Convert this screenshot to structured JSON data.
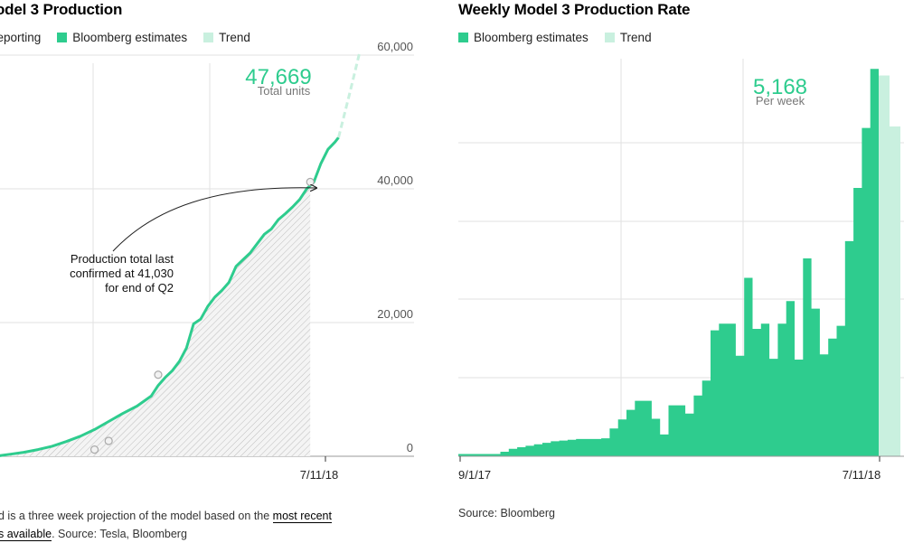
{
  "colors": {
    "bloomberg": "#2ecc8e",
    "trend": "#c9f0df",
    "reporting": "#d9d9d9",
    "grid": "#e2e2e2",
    "axis": "#bbbbbb",
    "text": "#333333"
  },
  "left_panel": {
    "title": "odel 3 Production",
    "legend": [
      {
        "label": "reporting",
        "swatch": "none",
        "icon": "reporting-swatch"
      },
      {
        "label": "Bloomberg estimates",
        "swatch": "#2ecc8e",
        "icon": "bloomberg-swatch"
      },
      {
        "label": "Trend",
        "swatch": "#c9f0df",
        "icon": "trend-swatch"
      }
    ],
    "big_value": "47,669",
    "big_value_caption": "Total units",
    "annotation_lines": [
      "Production total last",
      "confirmed at 41,030",
      "for end of Q2"
    ],
    "footnote_part1": "d is a three week projection of the model based on the ",
    "footnote_link1": "most recent",
    "footnote_link2": "s available",
    "footnote_part2": ". Source: Tesla, Bloomberg"
  },
  "right_panel": {
    "title": "Weekly Model 3 Production Rate",
    "legend": [
      {
        "label": "Bloomberg estimates",
        "swatch": "#2ecc8e",
        "icon": "bloomberg-swatch"
      },
      {
        "label": "Trend",
        "swatch": "#c9f0df",
        "icon": "trend-swatch"
      }
    ],
    "big_value": "5,168",
    "big_value_caption": "Per week",
    "source": "Source: Bloomberg"
  },
  "chart_data": [
    {
      "type": "line",
      "title": "odel 3 Production",
      "y_ticks": [
        "0",
        "20,000",
        "40,000",
        "60,000"
      ],
      "ylim": [
        0,
        60000
      ],
      "x_tick_labels": [
        "7/11/18"
      ],
      "series": [
        {
          "name": "Bloomberg estimates",
          "x_weeks": [
            0,
            4,
            8,
            12,
            16,
            20,
            24,
            28,
            32,
            36,
            40,
            44,
            46,
            48,
            50,
            52,
            54,
            56,
            58,
            60,
            62,
            64,
            66,
            68,
            70,
            72,
            74,
            76,
            78,
            80,
            82,
            84,
            86,
            88,
            90,
            92,
            94,
            96,
            97
          ],
          "values": [
            0,
            300,
            600,
            1000,
            1500,
            2200,
            3000,
            4000,
            5200,
            6400,
            7500,
            9000,
            10600,
            11800,
            12800,
            14200,
            16200,
            19800,
            20500,
            22400,
            23800,
            24800,
            26000,
            28400,
            29400,
            30400,
            31800,
            33200,
            34000,
            35400,
            36300,
            37300,
            38400,
            40000,
            41000,
            43800,
            45900,
            47000,
            47669
          ]
        },
        {
          "name": "Trend",
          "x_weeks": [
            97,
            100,
            103
          ],
          "values": [
            47669,
            54000,
            60500
          ]
        }
      ],
      "confirmed_points": [
        [
          28,
          1000
        ],
        [
          32,
          2300
        ],
        [
          46,
          12200
        ],
        [
          89,
          41030
        ]
      ]
    },
    {
      "type": "bar",
      "title": "Weekly Model 3 Production Rate",
      "x_tick_labels": [
        "9/1/17",
        "7/11/18"
      ],
      "series": [
        {
          "name": "Bloomberg estimates",
          "values": [
            30,
            30,
            30,
            30,
            30,
            60,
            100,
            120,
            140,
            160,
            180,
            200,
            210,
            220,
            230,
            230,
            230,
            240,
            370,
            490,
            620,
            740,
            740,
            500,
            290,
            680,
            680,
            570,
            810,
            1010,
            1680,
            1770,
            1770,
            1340,
            2380,
            1700,
            1770,
            1300,
            1770,
            2070,
            1290,
            2640,
            1970,
            1360,
            1570,
            1740,
            2870,
            3580,
            4380,
            5168
          ]
        },
        {
          "name": "Trend",
          "values": [
            5080,
            4400
          ]
        }
      ],
      "ylim": [
        0,
        5400
      ]
    }
  ]
}
